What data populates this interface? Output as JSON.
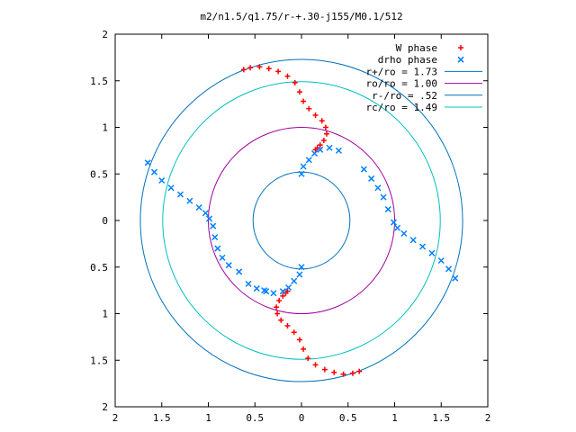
{
  "chart_data": {
    "type": "scatter",
    "title": "m2/n1.5/q1.75/r-+.30-j155/M0.1/512",
    "xlabel": "",
    "ylabel": "",
    "xlim": [
      -2,
      2
    ],
    "ylim": [
      -2,
      2
    ],
    "x_ticks": [
      -2,
      -1.5,
      -1,
      -0.5,
      0,
      0.5,
      1,
      1.5,
      2
    ],
    "y_ticks": [
      -2,
      -1.5,
      -1,
      -0.5,
      0,
      0.5,
      1,
      1.5,
      2
    ],
    "x_tick_labels": [
      "2",
      "1.5",
      "1",
      "0.5",
      "0",
      "0.5",
      "1",
      "1.5",
      "2"
    ],
    "y_tick_labels": [
      "2",
      "1.5",
      "1",
      "0.5",
      "0",
      "0.5",
      "1",
      "1.5",
      "2"
    ],
    "grid": false,
    "legend_position": "top-right",
    "series": [
      {
        "name": "W phase",
        "kind": "points",
        "marker": "plus",
        "color": "#ff0000",
        "points": [
          [
            -0.62,
            1.62
          ],
          [
            -0.55,
            1.64
          ],
          [
            -0.45,
            1.65
          ],
          [
            -0.35,
            1.63
          ],
          [
            -0.25,
            1.6
          ],
          [
            -0.15,
            1.55
          ],
          [
            -0.07,
            1.48
          ],
          [
            -0.02,
            1.38
          ],
          [
            0.02,
            1.28
          ],
          [
            0.08,
            1.2
          ],
          [
            0.15,
            1.13
          ],
          [
            0.22,
            1.07
          ],
          [
            0.26,
            1.0
          ],
          [
            0.27,
            0.93
          ],
          [
            0.24,
            0.86
          ],
          [
            0.2,
            0.81
          ],
          [
            0.17,
            0.78
          ],
          [
            0.15,
            0.76
          ],
          [
            0.62,
            -1.62
          ],
          [
            0.55,
            -1.64
          ],
          [
            0.45,
            -1.65
          ],
          [
            0.35,
            -1.63
          ],
          [
            0.25,
            -1.6
          ],
          [
            0.15,
            -1.55
          ],
          [
            0.07,
            -1.48
          ],
          [
            0.02,
            -1.38
          ],
          [
            -0.02,
            -1.28
          ],
          [
            -0.08,
            -1.2
          ],
          [
            -0.15,
            -1.13
          ],
          [
            -0.22,
            -1.07
          ],
          [
            -0.26,
            -1.0
          ],
          [
            -0.27,
            -0.93
          ],
          [
            -0.24,
            -0.86
          ],
          [
            -0.2,
            -0.81
          ],
          [
            -0.17,
            -0.78
          ],
          [
            -0.15,
            -0.76
          ]
        ]
      },
      {
        "name": "drho phase",
        "kind": "points",
        "marker": "cross",
        "color": "#0080ff",
        "points": [
          [
            -1.65,
            0.62
          ],
          [
            -1.58,
            0.52
          ],
          [
            -1.5,
            0.43
          ],
          [
            -1.4,
            0.35
          ],
          [
            -1.3,
            0.28
          ],
          [
            -1.2,
            0.21
          ],
          [
            -1.1,
            0.14
          ],
          [
            -1.03,
            0.08
          ],
          [
            -0.99,
            0.02
          ],
          [
            1.65,
            -0.62
          ],
          [
            1.58,
            -0.52
          ],
          [
            1.5,
            -0.43
          ],
          [
            1.4,
            -0.35
          ],
          [
            1.3,
            -0.28
          ],
          [
            1.2,
            -0.21
          ],
          [
            1.1,
            -0.14
          ],
          [
            1.03,
            -0.08
          ],
          [
            0.99,
            -0.02
          ],
          [
            0.0,
            0.5
          ],
          [
            0.02,
            0.58
          ],
          [
            0.08,
            0.65
          ],
          [
            0.14,
            0.72
          ],
          [
            0.2,
            0.76
          ],
          [
            0.3,
            0.78
          ],
          [
            0.4,
            0.75
          ],
          [
            0.0,
            -0.5
          ],
          [
            -0.02,
            -0.58
          ],
          [
            -0.08,
            -0.65
          ],
          [
            -0.14,
            -0.72
          ],
          [
            -0.2,
            -0.76
          ],
          [
            -0.3,
            -0.78
          ],
          [
            -0.4,
            -0.75
          ],
          [
            0.67,
            0.55
          ],
          [
            0.75,
            0.45
          ],
          [
            0.82,
            0.35
          ],
          [
            0.88,
            0.25
          ],
          [
            0.93,
            0.12
          ],
          [
            -0.67,
            -0.55
          ],
          [
            -0.57,
            -0.68
          ],
          [
            -0.48,
            -0.73
          ],
          [
            -0.38,
            -0.76
          ],
          [
            -0.95,
            -0.06
          ],
          [
            -0.93,
            -0.18
          ],
          [
            -0.9,
            -0.3
          ],
          [
            -0.85,
            -0.4
          ],
          [
            -0.78,
            -0.48
          ]
        ]
      },
      {
        "name": "r+/ro = 1.73",
        "kind": "circle",
        "radius": 1.73,
        "color": "#0072bd"
      },
      {
        "name": "ro/ro = 1.00",
        "kind": "circle",
        "radius": 1.0,
        "color": "#a000a0"
      },
      {
        "name": "r-/ro = .52",
        "kind": "circle",
        "radius": 0.52,
        "color": "#0072bd"
      },
      {
        "name": "rc/ro = 1.49",
        "kind": "circle",
        "radius": 1.49,
        "color": "#00c0c0"
      }
    ]
  }
}
